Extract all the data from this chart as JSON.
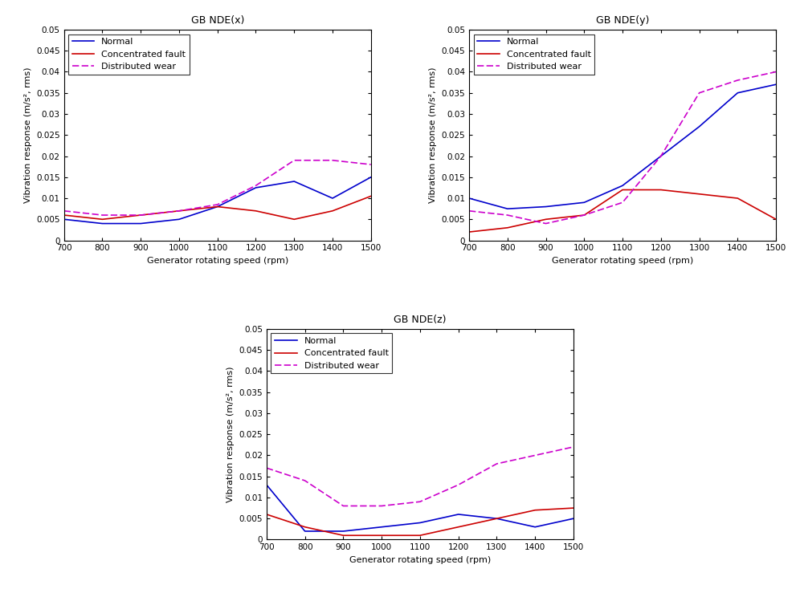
{
  "x": [
    700,
    800,
    900,
    1000,
    1100,
    1200,
    1300,
    1400,
    1500
  ],
  "subplot_titles": [
    "GB NDE(x)",
    "GB NDE(y)",
    "GB NDE(z)"
  ],
  "xlabel": "Generator rotating speed (rpm)",
  "ylabel": "Vibration response (m/s², rms)",
  "legend_labels": [
    "Normal",
    "Concentrated fault",
    "Distributed wear"
  ],
  "colors": {
    "normal": "#0000CC",
    "concentrated": "#CC0000",
    "distributed": "#CC00CC"
  },
  "ylim": [
    0,
    0.05
  ],
  "ytick_vals": [
    0,
    0.005,
    0.01,
    0.015,
    0.02,
    0.025,
    0.03,
    0.035,
    0.04,
    0.045,
    0.05
  ],
  "ytick_labels": [
    "0",
    "0.005",
    "0.01",
    "0.015",
    "0.02",
    "0.025",
    "0.03",
    "0.035",
    "0.04",
    "0.045",
    "0.05"
  ],
  "xticks": [
    700,
    800,
    900,
    1000,
    1100,
    1200,
    1300,
    1400,
    1500
  ],
  "plot_x": {
    "normal": [
      0.005,
      0.004,
      0.004,
      0.005,
      0.008,
      0.0125,
      0.014,
      0.01,
      0.015
    ],
    "concentrated": [
      0.006,
      0.005,
      0.006,
      0.007,
      0.008,
      0.007,
      0.005,
      0.007,
      0.0105
    ],
    "distributed": [
      0.007,
      0.006,
      0.006,
      0.007,
      0.0085,
      0.013,
      0.019,
      0.019,
      0.018
    ]
  },
  "plot_y": {
    "normal": [
      0.01,
      0.0075,
      0.008,
      0.009,
      0.013,
      0.02,
      0.027,
      0.035,
      0.037
    ],
    "concentrated": [
      0.002,
      0.003,
      0.005,
      0.006,
      0.012,
      0.012,
      0.011,
      0.01,
      0.005
    ],
    "distributed": [
      0.007,
      0.006,
      0.004,
      0.006,
      0.009,
      0.02,
      0.035,
      0.038,
      0.04
    ]
  },
  "plot_z": {
    "normal": [
      0.013,
      0.002,
      0.002,
      0.003,
      0.004,
      0.006,
      0.005,
      0.003,
      0.005
    ],
    "concentrated": [
      0.006,
      0.003,
      0.001,
      0.001,
      0.001,
      0.003,
      0.005,
      0.007,
      0.0075
    ],
    "distributed": [
      0.017,
      0.014,
      0.008,
      0.008,
      0.009,
      0.013,
      0.018,
      0.02,
      0.022
    ]
  },
  "line_width": 1.2,
  "title_fontsize": 9,
  "tick_fontsize": 7.5,
  "label_fontsize": 8,
  "legend_fontsize": 8
}
